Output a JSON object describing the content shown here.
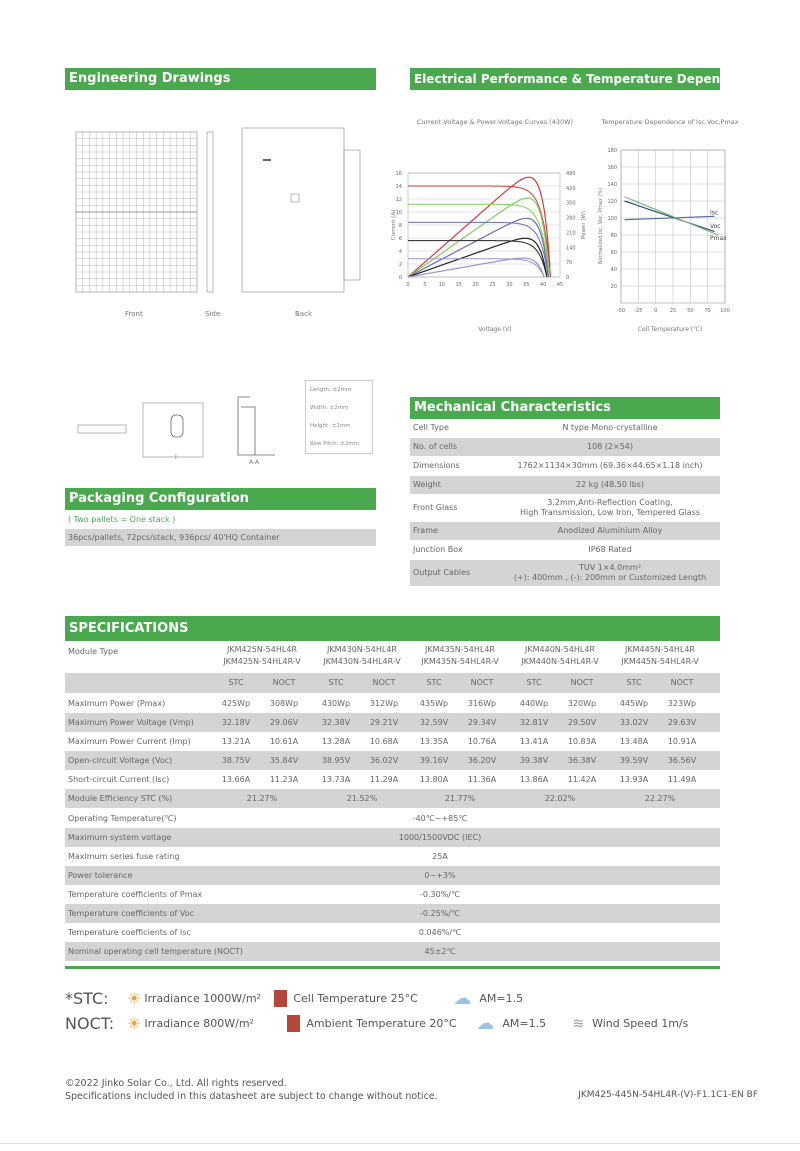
{
  "sections": {
    "drawings": "Engineering Drawings",
    "electrical": "Electrical Performance & Temperature Dependence",
    "mechanical": "Mechanical Characteristics",
    "packaging": "Packaging Configuration",
    "specifications": "SPECIFICATIONS"
  },
  "drawing_labels": {
    "front": "Front",
    "side": "Side",
    "back": "Back",
    "detail_i": "I",
    "detail_aa": "A-A"
  },
  "tolerances": [
    "Length: ±2mm",
    "Width: ±2mm",
    "Height: ±1mm",
    "Row Pitch: ±2mm"
  ],
  "chart_data": [
    {
      "type": "line",
      "title": "Current-Voltage & Power-Voltage Curves (430W)",
      "xlabel": "Voltage (V)",
      "ylabel": "Current (A)",
      "y2label": "Power (W)",
      "xlim": [
        0,
        45
      ],
      "ylim": [
        0,
        16
      ],
      "y2lim": [
        0,
        490
      ],
      "xticks": [
        "0",
        "5",
        "10",
        "15",
        "20",
        "25",
        "30",
        "35",
        "40",
        "45"
      ],
      "yticks": [
        "0",
        "2",
        "4",
        "6",
        "8",
        "10",
        "12",
        "14",
        "16"
      ],
      "y2ticks": [
        "0",
        "70",
        "140",
        "210",
        "280",
        "350",
        "420",
        "490"
      ],
      "grid": true,
      "series": [
        {
          "isc": 14,
          "voc": 42.2,
          "color": "#d23b3b"
        },
        {
          "isc": 11.2,
          "voc": 41.8,
          "color": "#7fcf5a"
        },
        {
          "isc": 8.4,
          "voc": 41.5,
          "color": "#6a6ab8"
        },
        {
          "isc": 5.6,
          "voc": 41.1,
          "color": "#222222"
        },
        {
          "isc": 2.8,
          "voc": 40.3,
          "color": "#9a90d0"
        }
      ]
    },
    {
      "type": "line",
      "title": "Temperature Dependence of Isc,Voc,Pmax",
      "xlabel": "Cell Temperature (℃)",
      "ylabel": "Normalized Isc, Voc, Pmax (%)",
      "xlim": [
        -50,
        100
      ],
      "ylim": [
        0,
        180
      ],
      "xticks": [
        "-50",
        "-25",
        "0",
        "25",
        "50",
        "75",
        "100"
      ],
      "yticks": [
        "20",
        "40",
        "60",
        "80",
        "100",
        "120",
        "140",
        "160",
        "180"
      ],
      "grid": true,
      "series": [
        {
          "name": "Isc",
          "x": [
            -45,
            85
          ],
          "y": [
            98,
            102
          ],
          "color": "#4a6fa5"
        },
        {
          "name": "Voc",
          "x": [
            -45,
            85
          ],
          "y": [
            120,
            84
          ],
          "color": "#2f4f7f"
        },
        {
          "name": "Pmax",
          "x": [
            -45,
            90
          ],
          "y": [
            125,
            80
          ],
          "color": "#7fb87f"
        }
      ]
    }
  ],
  "mechanical": [
    {
      "label": "Cell  Type",
      "value": "N type Mono-crystalline"
    },
    {
      "label": "No. of cells",
      "value": "108 (2×54)"
    },
    {
      "label": "Dimensions",
      "value": "1762×1134×30mm (69.36×44.65×1.18 inch)"
    },
    {
      "label": "Weight",
      "value": "22 kg (48.50 lbs)"
    },
    {
      "label": "Front Glass",
      "value": "3.2mm,Anti-Reflection Coating,",
      "value2": "High Transmission, Low Iron, Tempered Glass"
    },
    {
      "label": "Frame",
      "value": "Anodized Aluminium Alloy"
    },
    {
      "label": "Junction Box",
      "value": "IP68 Rated"
    },
    {
      "label": "Output Cables",
      "value": "TUV  1×4.0mm²",
      "value2": "(+): 400mm , (-): 200mm or Customized Length"
    }
  ],
  "packaging": {
    "note": "( Two pallets = One stack )",
    "text": "36pcs/pallets, 72pcs/stack, 936pcs/ 40'HQ Container"
  },
  "specs": {
    "module_type_label": "Module Type",
    "models": [
      [
        "JKM425N-54HL4R",
        "JKM425N-54HL4R-V"
      ],
      [
        "JKM430N-54HL4R",
        "JKM430N-54HL4R-V"
      ],
      [
        "JKM435N-54HL4R",
        "JKM435N-54HL4R-V"
      ],
      [
        "JKM440N-54HL4R",
        "JKM440N-54HL4R-V"
      ],
      [
        "JKM445N-54HL4R",
        "JKM445N-54HL4R-V"
      ]
    ],
    "stc": "STC",
    "noct": "NOCT",
    "rows": [
      {
        "label": "Maximum Power (Pmax)",
        "values": [
          "425Wp",
          "308Wp",
          "430Wp",
          "312Wp",
          "435Wp",
          "316Wp",
          "440Wp",
          "320Wp",
          "445Wp",
          "323Wp"
        ]
      },
      {
        "label": "Maximum Power Voltage (Vmp)",
        "values": [
          "32.18V",
          "29.06V",
          "32.38V",
          "29.21V",
          "32.59V",
          "29.34V",
          "32.81V",
          "29.50V",
          "33.02V",
          "29.63V"
        ]
      },
      {
        "label": "Maximum Power Current (Imp)",
        "values": [
          "13.21A",
          "10.61A",
          "13.28A",
          "10.68A",
          "13.35A",
          "10.76A",
          "13.41A",
          "10.83A",
          "13.48A",
          "10.91A"
        ]
      },
      {
        "label": "Open-circuit Voltage (Voc)",
        "values": [
          "38.75V",
          "35.84V",
          "38.95V",
          "36.02V",
          "39.16V",
          "36.20V",
          "39.38V",
          "36.38V",
          "39.59V",
          "36.56V"
        ]
      },
      {
        "label": "Short-circuit Current (Isc)",
        "values": [
          "13.66A",
          "11.23A",
          "13.73A",
          "11.29A",
          "13.80A",
          "11.36A",
          "13.86A",
          "11.42A",
          "13.93A",
          "11.49A"
        ]
      }
    ],
    "efficiency": {
      "label": "Module Efficiency STC (%)",
      "values": [
        "21.27%",
        "21.52%",
        "21.77%",
        "22.02%",
        "22.27%"
      ]
    },
    "common": [
      {
        "label": "Operating Temperature(℃)",
        "value": "-40℃~+85℃"
      },
      {
        "label": "Maximum system voltage",
        "value": "1000/1500VDC (IEC)"
      },
      {
        "label": "Maximum series fuse rating",
        "value": "25A"
      },
      {
        "label": "Power tolerance",
        "value": "0~+3%"
      },
      {
        "label": "Temperature coefficients of Pmax",
        "value": "-0.30%/℃"
      },
      {
        "label": "Temperature coefficients of Voc",
        "value": "-0.25%/℃"
      },
      {
        "label": "Temperature coefficients of Isc",
        "value": "0.046%/℃"
      },
      {
        "label": "Nominal operating cell temperature  (NOCT)",
        "value": "45±2℃"
      }
    ]
  },
  "legend": {
    "stc": {
      "tag": "*STC:",
      "irradiance": "Irradiance 1000W/m²",
      "temp": "Cell Temperature 25°C",
      "am": "AM=1.5"
    },
    "noct": {
      "tag": "NOCT:",
      "irradiance": "Irradiance 800W/m²",
      "temp": "Ambient Temperature 20°C",
      "am": "AM=1.5",
      "wind": "Wind Speed 1m/s"
    }
  },
  "footer": {
    "copyright": "©2022 Jinko Solar Co., Ltd. All rights reserved.",
    "disclaimer": "Specifications included in this datasheet are subject to change without notice.",
    "doc_code": "JKM425-445N-54HL4R-(V)-F1.1C1-EN BF"
  },
  "colors": {
    "green": "#4aa84f",
    "grey_row": "#d4d4d4"
  }
}
